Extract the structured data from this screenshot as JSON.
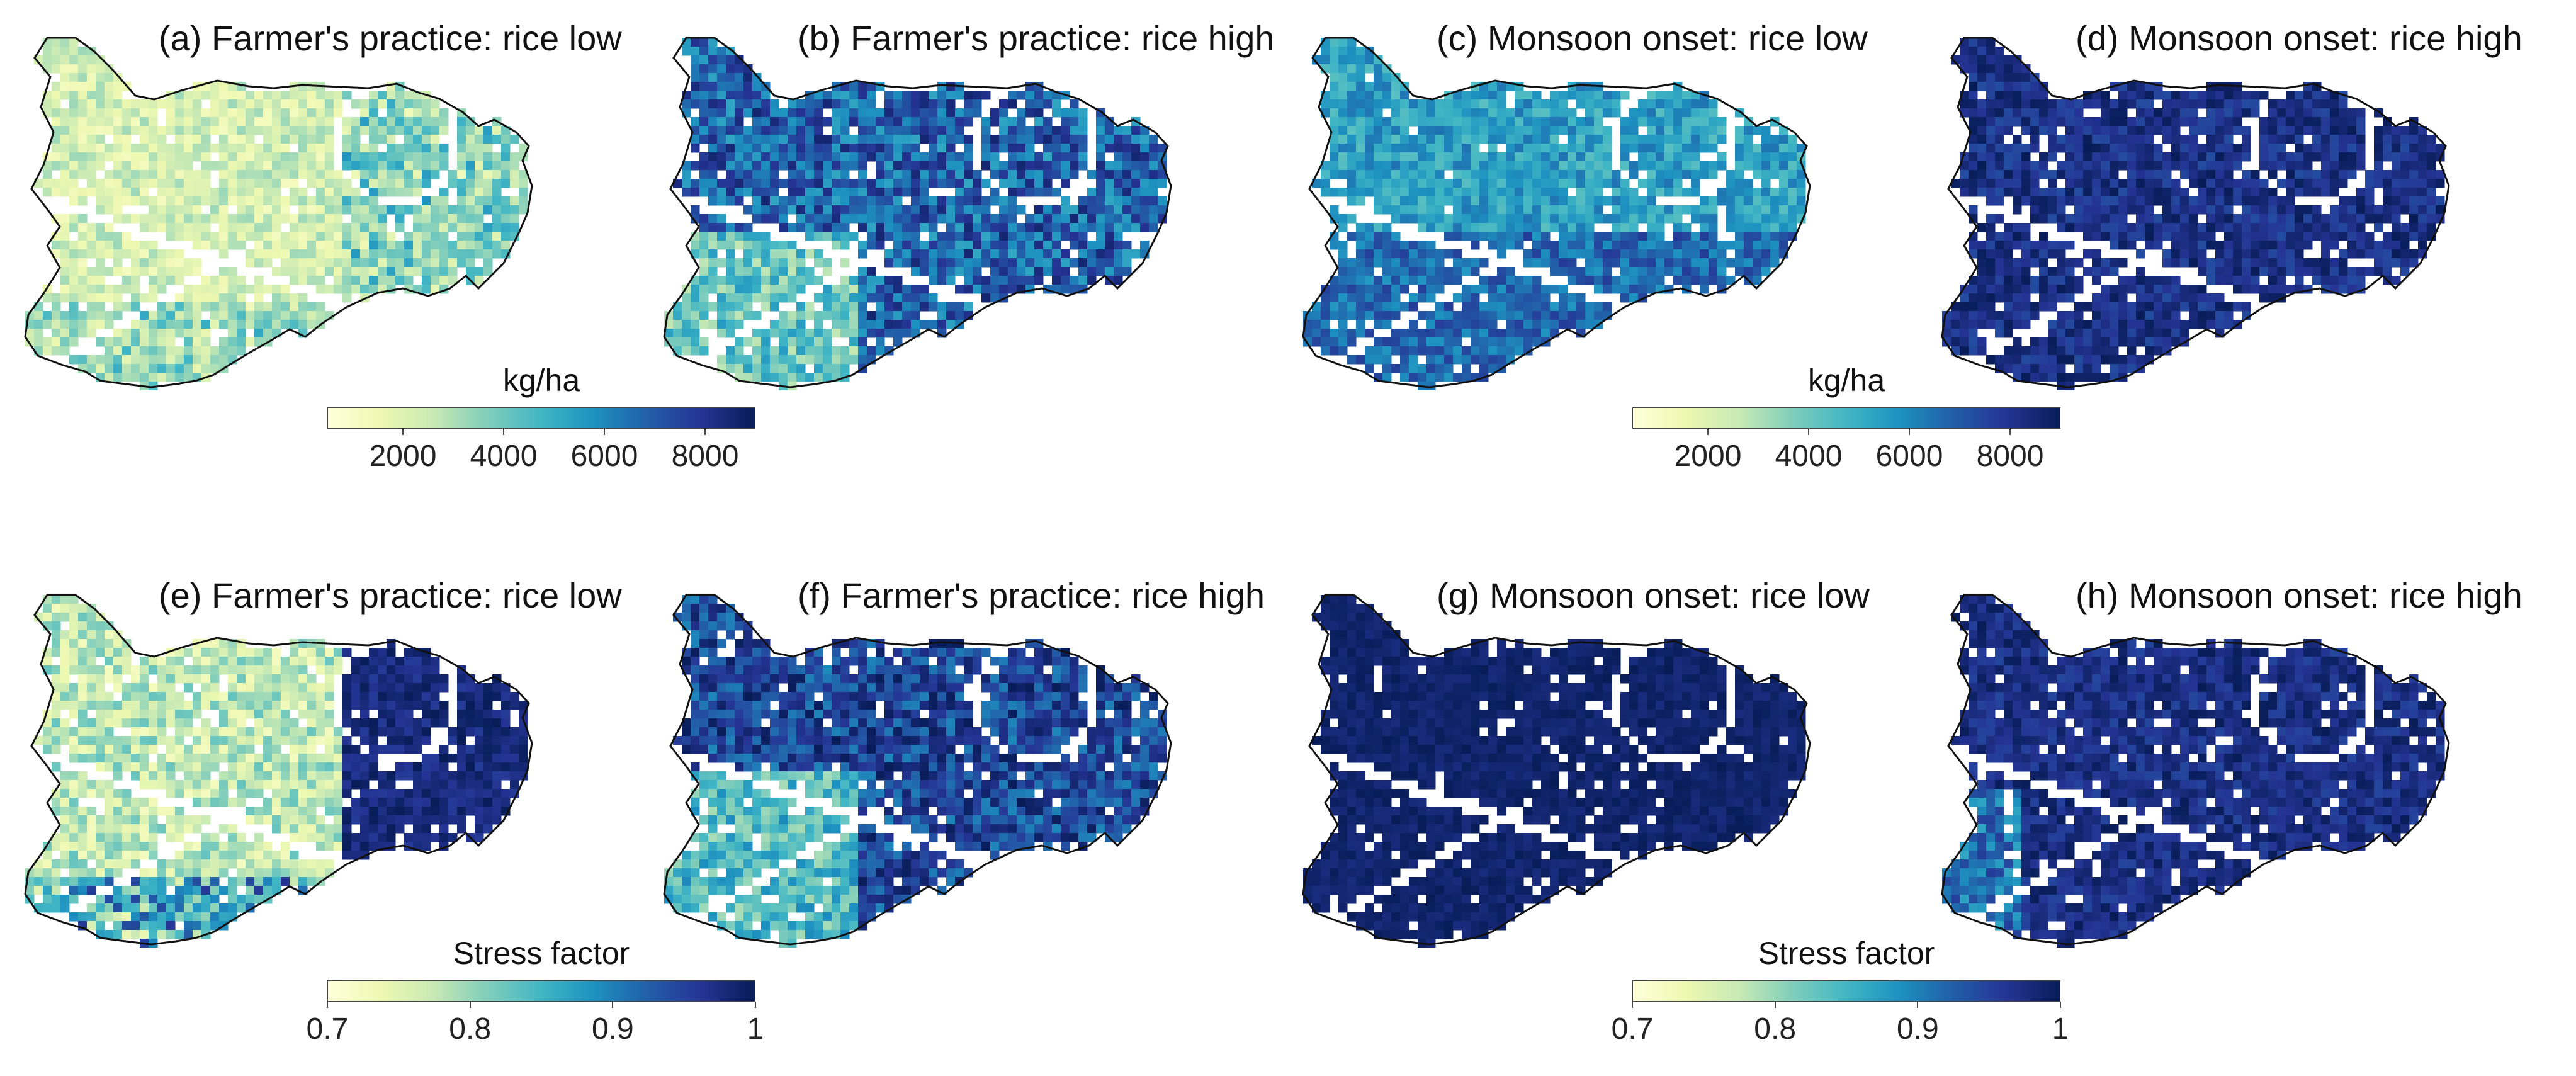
{
  "panels": [
    {
      "title": "(a) Farmer's practice: rice low",
      "mode": "light"
    },
    {
      "title": "(b) Farmer's practice: rice high",
      "mode": "mixed"
    },
    {
      "title": "(c) Monsoon onset: rice low",
      "mode": "mid"
    },
    {
      "title": "(d) Monsoon onset: rice high",
      "mode": "dark"
    },
    {
      "title": "(e) Farmer's practice: rice low",
      "mode": "lightwest"
    },
    {
      "title": "(f) Farmer's practice: rice high",
      "mode": "mixedwest"
    },
    {
      "title": "(g) Monsoon onset: rice low",
      "mode": "darkest"
    },
    {
      "title": "(h) Monsoon onset: rice high",
      "mode": "darkwest"
    }
  ],
  "colorbars": [
    {
      "label": "kg/ha",
      "ticks": [
        "2000",
        "4000",
        "6000",
        "8000"
      ],
      "tick_values": [
        2000,
        4000,
        6000,
        8000
      ],
      "range": [
        500,
        9000
      ]
    },
    {
      "label": "kg/ha",
      "ticks": [
        "2000",
        "4000",
        "6000",
        "8000"
      ],
      "tick_values": [
        2000,
        4000,
        6000,
        8000
      ],
      "range": [
        500,
        9000
      ]
    },
    {
      "label": "Stress factor",
      "ticks": [
        "0.7",
        "0.8",
        "0.9",
        "1"
      ],
      "tick_values": [
        0.7,
        0.8,
        0.9,
        1.0
      ],
      "range": [
        0.7,
        1.0
      ]
    },
    {
      "label": "Stress factor",
      "ticks": [
        "0.7",
        "0.8",
        "0.9",
        "1"
      ],
      "tick_values": [
        0.7,
        0.8,
        0.9,
        1.0
      ],
      "range": [
        0.7,
        1.0
      ]
    }
  ],
  "colormap": [
    "#ffffd9",
    "#edf8b1",
    "#c7e9b4",
    "#7fcdbb",
    "#41b6c4",
    "#1d91c0",
    "#225ea8",
    "#253494",
    "#081d58"
  ]
}
